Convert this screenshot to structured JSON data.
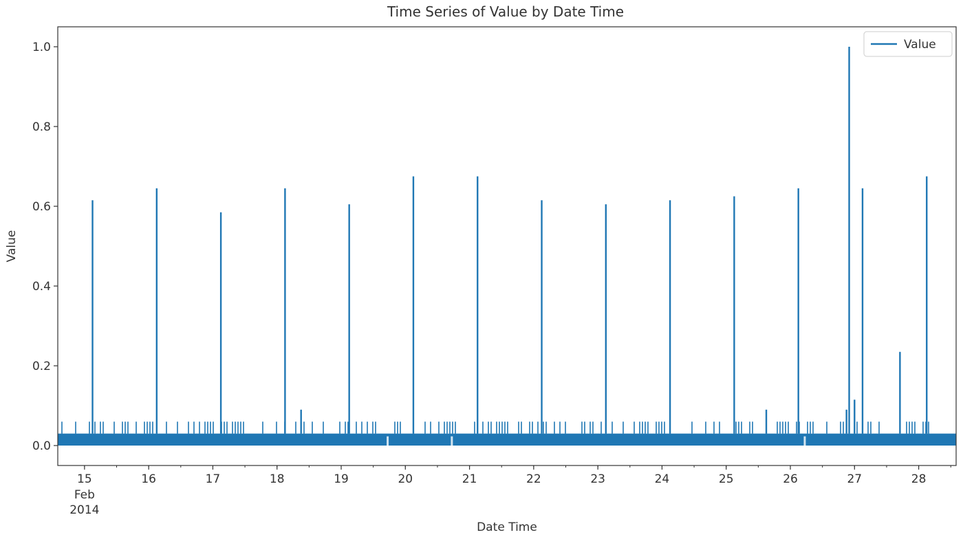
{
  "chart_data": {
    "type": "line",
    "title": "Time Series of Value by Date Time",
    "xlabel": "Date Time",
    "ylabel": "Value",
    "x_axis": "date",
    "xlim": [
      "2014-02-14T14:00",
      "2014-02-28T14:00"
    ],
    "ylim": [
      -0.05,
      1.05
    ],
    "yticks": [
      0.0,
      0.2,
      0.4,
      0.6,
      0.8,
      1.0
    ],
    "ytick_labels": [
      "0.0",
      "0.2",
      "0.4",
      "0.6",
      "0.8",
      "1.0"
    ],
    "xticks": [
      "2014-02-15",
      "2014-02-16",
      "2014-02-17",
      "2014-02-18",
      "2014-02-19",
      "2014-02-20",
      "2014-02-21",
      "2014-02-22",
      "2014-02-23",
      "2014-02-24",
      "2014-02-25",
      "2014-02-26",
      "2014-02-27",
      "2014-02-28"
    ],
    "xtick_labels": [
      "15",
      "16",
      "17",
      "18",
      "19",
      "20",
      "21",
      "22",
      "23",
      "24",
      "25",
      "26",
      "27",
      "28"
    ],
    "xtick_sublabels": [
      "Feb",
      "2014"
    ],
    "legend": {
      "position": "top-right",
      "entries": [
        "Value"
      ]
    },
    "grid": false,
    "line_color": "#1f77b4",
    "baseline": {
      "min": 0.0,
      "max": 0.03
    },
    "series": [
      {
        "name": "Value",
        "peaks": [
          {
            "x": "2014-02-15T03:00",
            "y": 0.615
          },
          {
            "x": "2014-02-16T03:00",
            "y": 0.645
          },
          {
            "x": "2014-02-17T03:00",
            "y": 0.585
          },
          {
            "x": "2014-02-18T03:00",
            "y": 0.645
          },
          {
            "x": "2014-02-18T09:00",
            "y": 0.09
          },
          {
            "x": "2014-02-19T03:00",
            "y": 0.605
          },
          {
            "x": "2014-02-20T03:00",
            "y": 0.675
          },
          {
            "x": "2014-02-21T03:00",
            "y": 0.675
          },
          {
            "x": "2014-02-22T03:00",
            "y": 0.615
          },
          {
            "x": "2014-02-23T03:00",
            "y": 0.605
          },
          {
            "x": "2014-02-24T03:00",
            "y": 0.615
          },
          {
            "x": "2014-02-25T03:00",
            "y": 0.625
          },
          {
            "x": "2014-02-25T15:00",
            "y": 0.09
          },
          {
            "x": "2014-02-26T03:00",
            "y": 0.645
          },
          {
            "x": "2014-02-26T21:00",
            "y": 0.09
          },
          {
            "x": "2014-02-26T22:00",
            "y": 1.0
          },
          {
            "x": "2014-02-27T00:00",
            "y": 0.115
          },
          {
            "x": "2014-02-27T03:00",
            "y": 0.645
          },
          {
            "x": "2014-02-27T17:00",
            "y": 0.235
          },
          {
            "x": "2014-02-28T03:00",
            "y": 0.675
          }
        ],
        "small_spike_value": 0.06
      }
    ]
  }
}
